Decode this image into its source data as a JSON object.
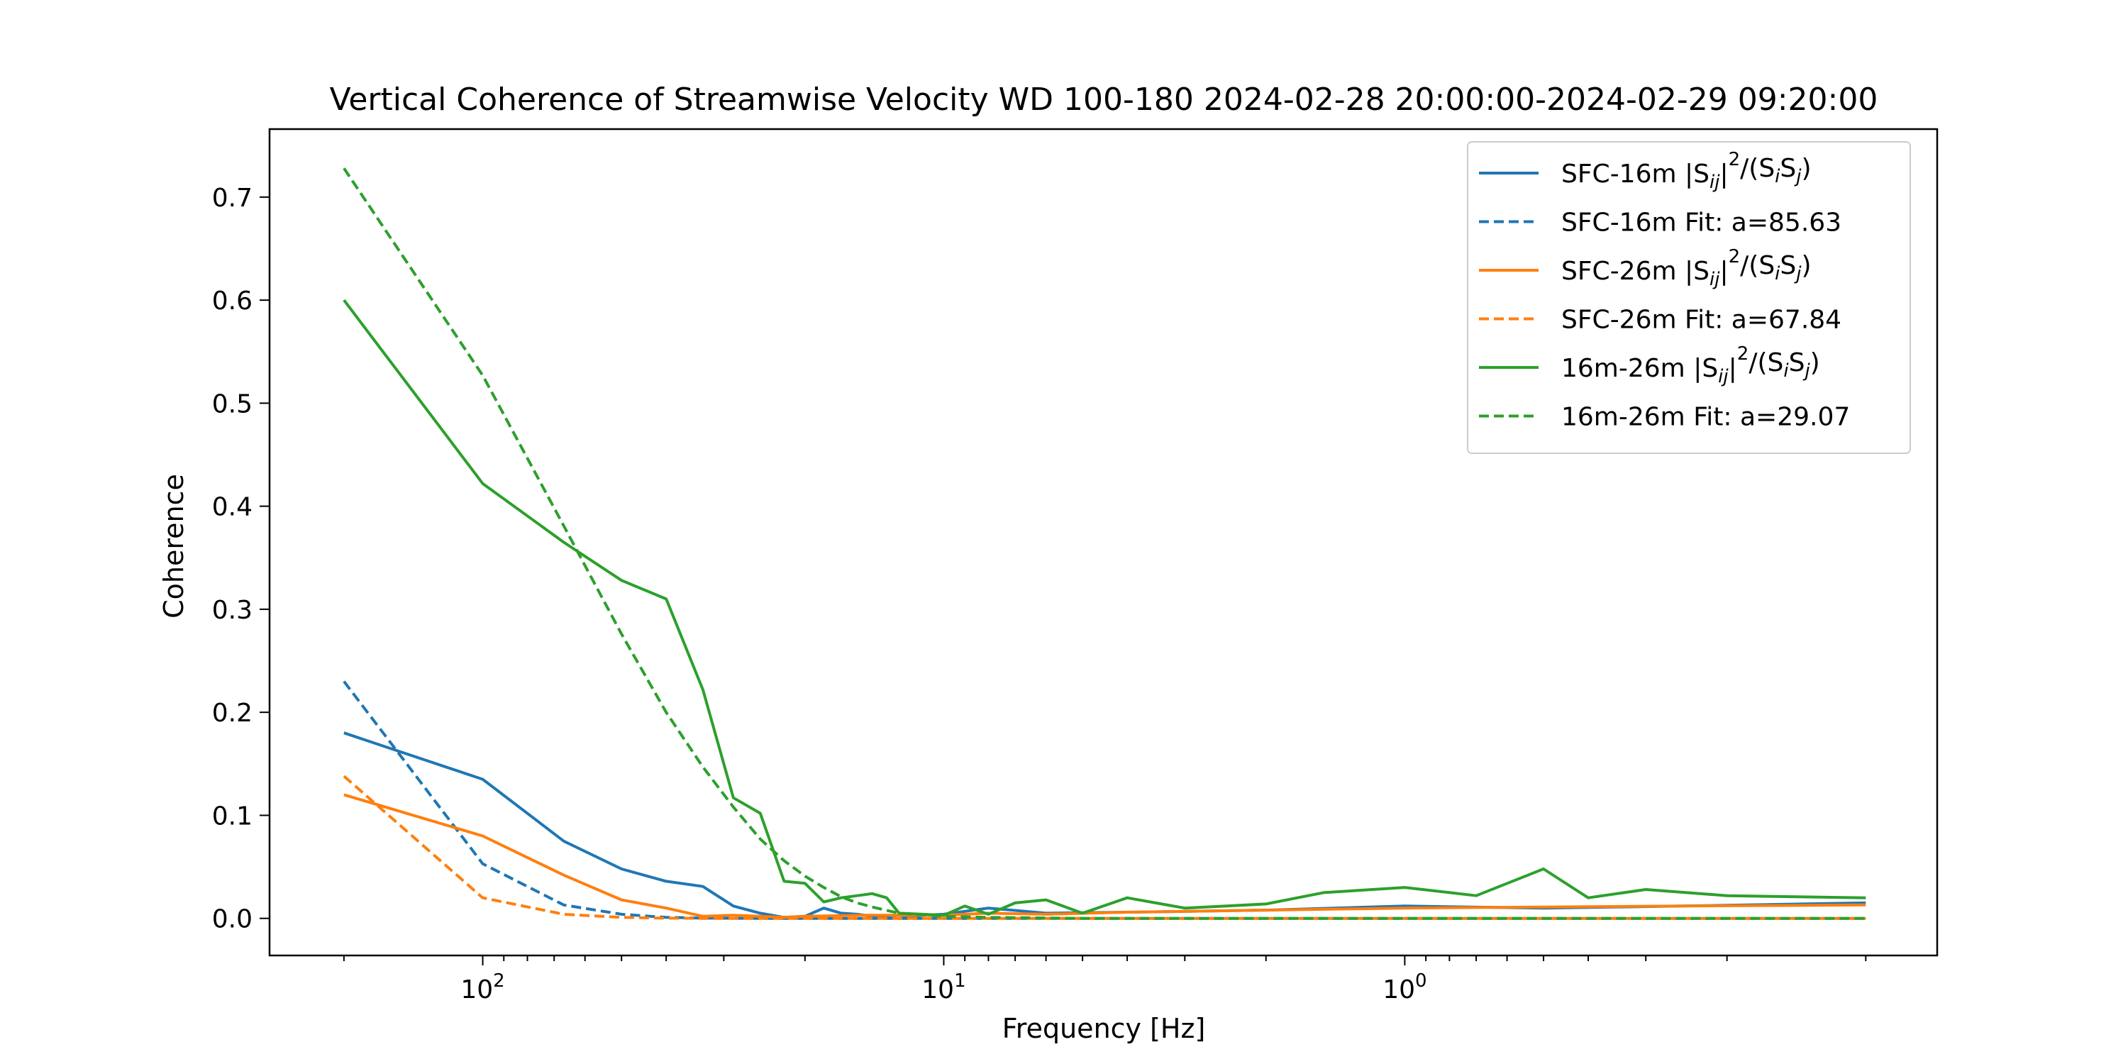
{
  "chart_data": {
    "type": "line",
    "title": "Vertical Coherence of Streamwise Velocity WD 100-180 2024-02-28 20:00:00-2024-02-29 09:20:00",
    "xlabel": "Frequency [Hz]",
    "ylabel": "Coherence",
    "x_scale": "log",
    "x_axis_inverted": true,
    "xlim": [
      0.07,
      290
    ],
    "ylim": [
      -0.036,
      0.766
    ],
    "x_major_ticks": [
      {
        "value": 100,
        "label": "10",
        "exp": "2"
      },
      {
        "value": 10,
        "label": "10",
        "exp": "1"
      },
      {
        "value": 1,
        "label": "10",
        "exp": "0"
      }
    ],
    "y_ticks": [
      {
        "value": 0.0,
        "label": "0.0"
      },
      {
        "value": 0.1,
        "label": "0.1"
      },
      {
        "value": 0.2,
        "label": "0.2"
      },
      {
        "value": 0.3,
        "label": "0.3"
      },
      {
        "value": 0.4,
        "label": "0.4"
      },
      {
        "value": 0.5,
        "label": "0.5"
      },
      {
        "value": 0.6,
        "label": "0.6"
      },
      {
        "value": 0.7,
        "label": "0.7"
      }
    ],
    "grid": false,
    "legend_position": "upper-right",
    "series": [
      {
        "name": "SFC-16m |Sij|²/(SiSj)",
        "legend_parts": [
          "SFC-16m |S",
          "ij",
          "|",
          "2",
          "/(S",
          "i",
          "S",
          "j",
          ")"
        ],
        "color": "#1f77b4",
        "dash": "solid",
        "x": [
          200,
          100,
          66.7,
          50,
          40,
          33.3,
          28.6,
          25,
          22.2,
          20,
          18.2,
          16.7,
          15.4,
          14.3,
          13.3,
          12.5,
          11.1,
          10,
          8,
          6,
          4,
          2,
          1,
          0.5,
          0.25,
          0.1
        ],
        "y": [
          0.18,
          0.135,
          0.075,
          0.048,
          0.036,
          0.031,
          0.012,
          0.005,
          0.001,
          0.002,
          0.01,
          0.005,
          0.004,
          0.002,
          0.001,
          0.0,
          0.003,
          0.004,
          0.01,
          0.005,
          0.006,
          0.008,
          0.012,
          0.01,
          0.012,
          0.015
        ]
      },
      {
        "name": "SFC-16m Fit: a=85.63",
        "color": "#1f77b4",
        "dash": "dashed",
        "x": [
          200,
          100,
          66.7,
          50,
          40,
          33.3,
          28.6,
          25,
          20,
          15,
          10,
          5,
          1,
          0.1
        ],
        "y": [
          0.23,
          0.053,
          0.013,
          0.004,
          0.001,
          0.0003,
          0.0001,
          0,
          0,
          0,
          0,
          0,
          0,
          0
        ]
      },
      {
        "name": "SFC-26m |Sij|²/(SiSj)",
        "legend_parts": [
          "SFC-26m |S",
          "ij",
          "|",
          "2",
          "/(S",
          "i",
          "S",
          "j",
          ")"
        ],
        "color": "#ff7f0e",
        "dash": "solid",
        "x": [
          200,
          100,
          66.7,
          50,
          40,
          33.3,
          28.6,
          25,
          22.2,
          20,
          15,
          10,
          8,
          6,
          4,
          2,
          1,
          0.5,
          0.25,
          0.1
        ],
        "y": [
          0.12,
          0.08,
          0.042,
          0.018,
          0.01,
          0.002,
          0.003,
          0.002,
          0.001,
          0.002,
          0.003,
          0.003,
          0.005,
          0.004,
          0.006,
          0.008,
          0.01,
          0.011,
          0.012,
          0.013
        ]
      },
      {
        "name": "SFC-26m Fit: a=67.84",
        "color": "#ff7f0e",
        "dash": "dashed",
        "x": [
          200,
          100,
          66.7,
          50,
          40,
          33.3,
          28.6,
          25,
          20,
          15,
          10,
          5,
          1,
          0.1
        ],
        "y": [
          0.138,
          0.02,
          0.004,
          0.001,
          0.0002,
          0,
          0,
          0,
          0,
          0,
          0,
          0,
          0,
          0
        ]
      },
      {
        "name": "16m-26m |Sij|²/(SiSj)",
        "legend_parts": [
          "16m-26m |S",
          "ij",
          "|",
          "2",
          "/(S",
          "i",
          "S",
          "j",
          ")"
        ],
        "color": "#2ca02c",
        "dash": "solid",
        "x": [
          200,
          100,
          66.7,
          50,
          40,
          33.3,
          28.6,
          25,
          22.2,
          20,
          18.2,
          16.7,
          15.4,
          14.3,
          13.3,
          12.5,
          11.1,
          10,
          9,
          8,
          7,
          6,
          5,
          4,
          3,
          2,
          1.5,
          1,
          0.7,
          0.5,
          0.4,
          0.3,
          0.2,
          0.1
        ],
        "y": [
          0.6,
          0.422,
          0.365,
          0.328,
          0.31,
          0.222,
          0.117,
          0.102,
          0.036,
          0.034,
          0.016,
          0.02,
          0.022,
          0.024,
          0.02,
          0.005,
          0.004,
          0.003,
          0.012,
          0.004,
          0.015,
          0.018,
          0.005,
          0.02,
          0.01,
          0.014,
          0.025,
          0.03,
          0.022,
          0.048,
          0.02,
          0.028,
          0.022,
          0.02
        ]
      },
      {
        "name": "16m-26m Fit: a=29.07",
        "color": "#2ca02c",
        "dash": "dashed",
        "x": [
          200,
          100,
          66.7,
          50,
          40,
          33.3,
          28.6,
          25,
          22.2,
          20,
          18.2,
          16.7,
          15.4,
          14.3,
          12.5,
          10,
          8,
          5,
          1,
          0.1
        ],
        "y": [
          0.728,
          0.527,
          0.381,
          0.276,
          0.2,
          0.147,
          0.108,
          0.077,
          0.056,
          0.041,
          0.03,
          0.021,
          0.015,
          0.011,
          0.005,
          0.002,
          0.001,
          0,
          0,
          0
        ]
      }
    ]
  }
}
